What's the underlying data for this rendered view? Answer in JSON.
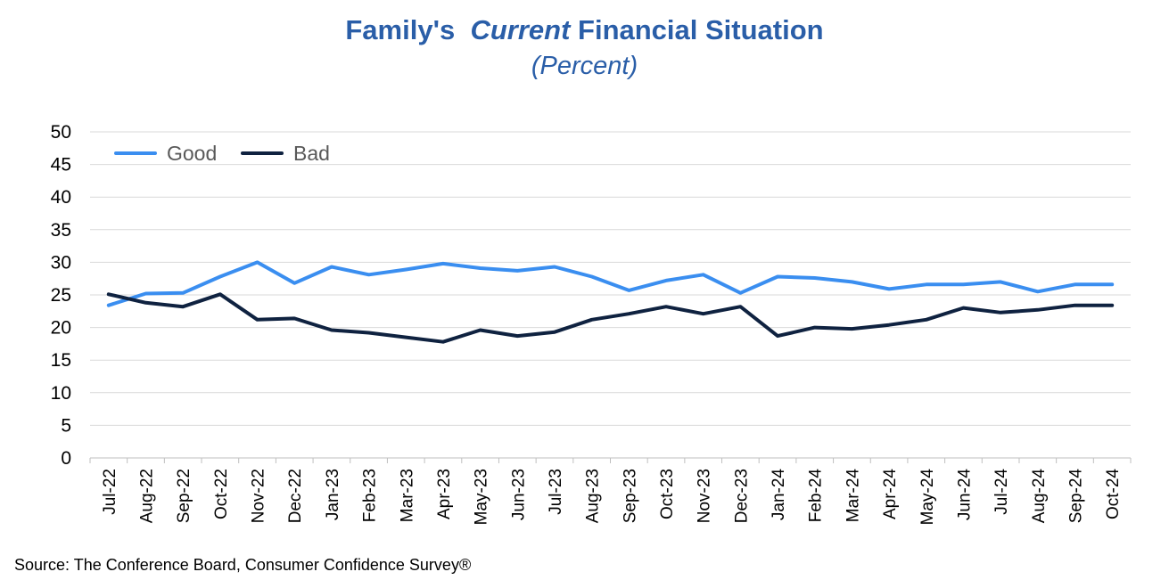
{
  "title": {
    "part1": "Family's",
    "part2": "Current",
    "part3": "Financial Situation",
    "subtitle": "(Percent)"
  },
  "source": "Source: The Conference Board, Consumer Confidence    Survey®",
  "colors": {
    "good": "#3a8ef0",
    "bad": "#0f2240",
    "grid": "#d9d9d9",
    "title": "#2a5ea8"
  },
  "chart_data": {
    "type": "line",
    "categories": [
      "Jul-22",
      "Aug-22",
      "Sep-22",
      "Oct-22",
      "Nov-22",
      "Dec-22",
      "Jan-23",
      "Feb-23",
      "Mar-23",
      "Apr-23",
      "May-23",
      "Jun-23",
      "Jul-23",
      "Aug-23",
      "Sep-23",
      "Oct-23",
      "Nov-23",
      "Dec-23",
      "Jan-24",
      "Feb-24",
      "Mar-24",
      "Apr-24",
      "May-24",
      "Jun-24",
      "Jul-24",
      "Aug-24",
      "Sep-24",
      "Oct-24"
    ],
    "series": [
      {
        "name": "Good",
        "color": "#3a8ef0",
        "values": [
          23.4,
          25.2,
          25.3,
          27.8,
          30.0,
          26.8,
          29.3,
          28.1,
          28.9,
          29.8,
          29.1,
          28.7,
          29.3,
          27.8,
          25.7,
          27.2,
          28.1,
          25.3,
          27.8,
          27.6,
          27.0,
          25.9,
          26.6,
          26.6,
          27.0,
          25.5,
          26.6,
          26.6
        ]
      },
      {
        "name": "Bad",
        "color": "#0f2240",
        "values": [
          25.1,
          23.8,
          23.2,
          25.1,
          21.2,
          21.4,
          19.6,
          19.2,
          18.5,
          17.8,
          19.6,
          18.7,
          19.3,
          21.2,
          22.1,
          23.2,
          22.1,
          23.2,
          18.7,
          20.0,
          19.8,
          20.4,
          21.2,
          23.0,
          22.3,
          22.7,
          23.4,
          23.4
        ]
      }
    ],
    "ylim": [
      0,
      50
    ],
    "yticks": [
      0,
      5,
      10,
      15,
      20,
      25,
      30,
      35,
      40,
      45,
      50
    ],
    "grid": true,
    "legend_position": "top-left"
  }
}
